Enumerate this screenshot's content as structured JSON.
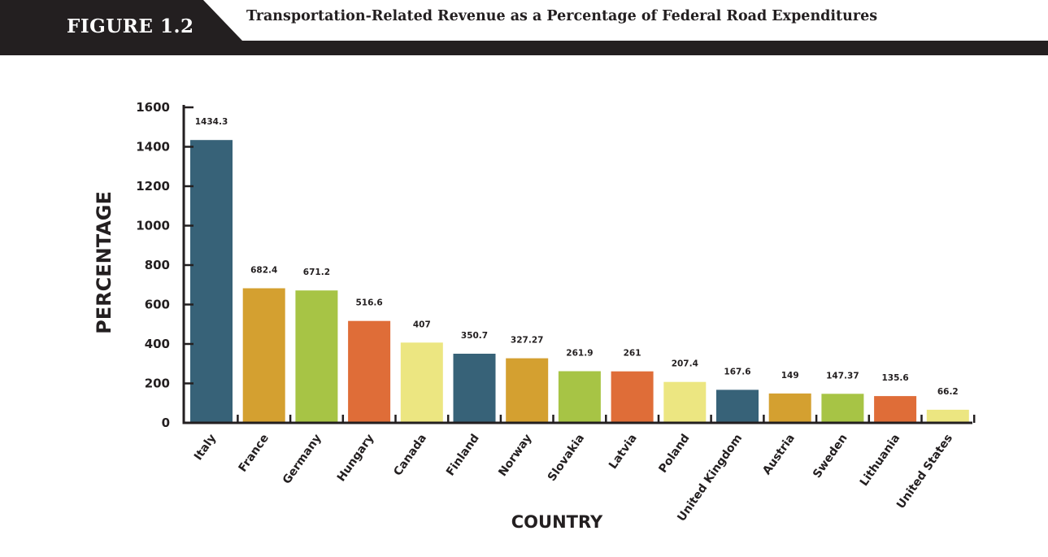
{
  "header": {
    "figure_label": "FIGURE 1.2",
    "title": "Transportation-Related Revenue as a Percentage of Federal Road Expenditures"
  },
  "colors": {
    "header_dark": "#231f20",
    "teal": "#376278",
    "gold": "#d4a030",
    "green": "#a7c445",
    "orange": "#df6d38",
    "yellow": "#ece681"
  },
  "chart_data": {
    "type": "bar",
    "title": "Transportation-Related Revenue as a Percentage of Federal Road Expenditures",
    "xlabel": "COUNTRY",
    "ylabel": "PERCENTAGE",
    "ylim": [
      0,
      1600
    ],
    "yticks": [
      0,
      200,
      400,
      600,
      800,
      1000,
      1200,
      1400,
      1600
    ],
    "grid": false,
    "categories": [
      "Italy",
      "France",
      "Germany",
      "Hungary",
      "Canada",
      "Finland",
      "Norway",
      "Slovakia",
      "Latvia",
      "Poland",
      "United Kingdom",
      "Austria",
      "Sweden",
      "Lithuania",
      "United States"
    ],
    "values": [
      1434.3,
      682.4,
      671.2,
      516.6,
      407,
      350.7,
      327.27,
      261.9,
      261,
      207.4,
      167.6,
      149,
      147.37,
      135.6,
      66.2
    ],
    "value_labels": [
      "1434.3",
      "682.4",
      "671.2",
      "516.6",
      "407",
      "350.7",
      "327.27",
      "261.9",
      "261",
      "207.4",
      "167.6",
      "149",
      "147.37",
      "135.6",
      "66.2"
    ],
    "bar_colors": [
      "#376278",
      "#d4a030",
      "#a7c445",
      "#df6d38",
      "#ece681",
      "#376278",
      "#d4a030",
      "#a7c445",
      "#df6d38",
      "#ece681",
      "#376278",
      "#d4a030",
      "#a7c445",
      "#df6d38",
      "#ece681"
    ]
  }
}
